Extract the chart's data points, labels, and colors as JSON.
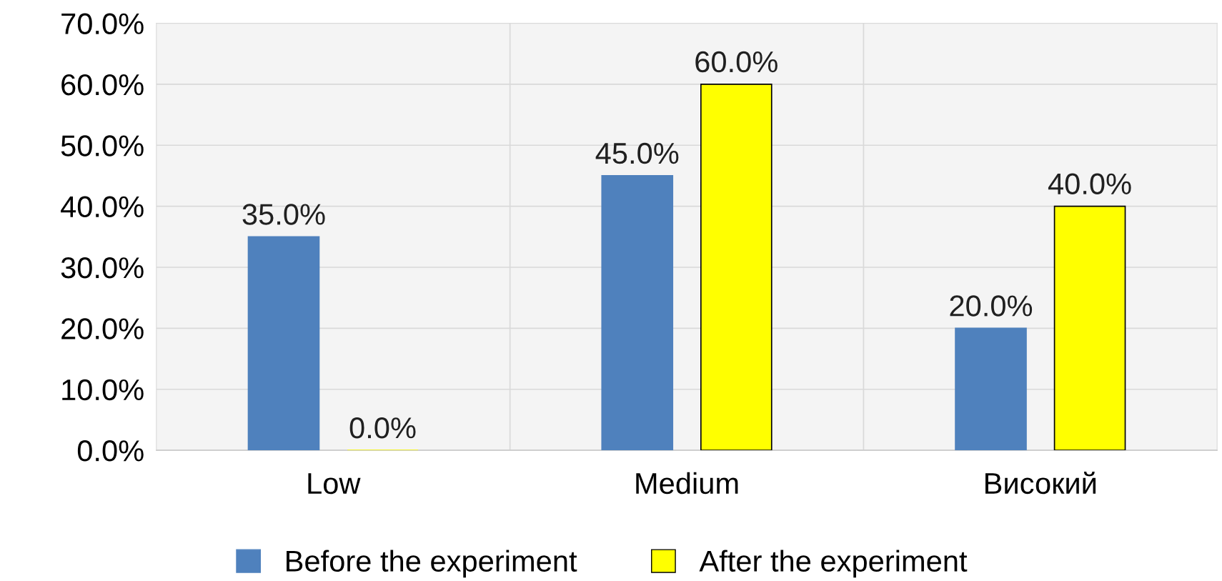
{
  "chart_data": {
    "type": "bar",
    "categories": [
      "Low",
      "Medium",
      "Високий"
    ],
    "series": [
      {
        "name": "Before the experiment",
        "color": "#4f81bd",
        "values": [
          35,
          45,
          20
        ],
        "value_labels": [
          "35.0%",
          "45.0%",
          "20.0%"
        ]
      },
      {
        "name": "After the experiment",
        "color": "#ffff00",
        "values": [
          0,
          60,
          40
        ],
        "value_labels": [
          "0.0%",
          "60.0%",
          "40.0%"
        ]
      }
    ],
    "ylim": [
      0,
      70
    ],
    "yticks": [
      {
        "value": 0,
        "label": "0.0%"
      },
      {
        "value": 10,
        "label": "10.0%"
      },
      {
        "value": 20,
        "label": "20.0%"
      },
      {
        "value": 30,
        "label": "30.0%"
      },
      {
        "value": 40,
        "label": "40.0%"
      },
      {
        "value": 50,
        "label": "50.0%"
      },
      {
        "value": 60,
        "label": "60.0%"
      },
      {
        "value": 70,
        "label": "70.0%"
      }
    ],
    "grid": true,
    "legend": "bottom"
  }
}
